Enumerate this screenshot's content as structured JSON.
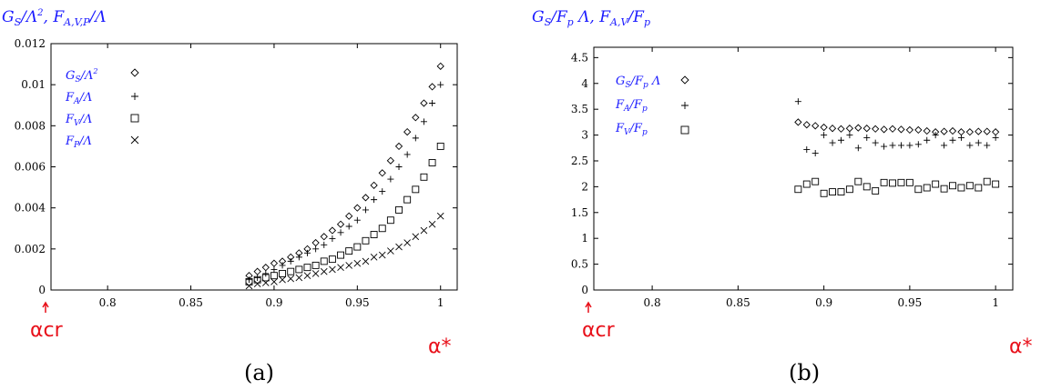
{
  "charts": [
    {
      "ylabel": "G_S/Λ², F_A,V,P/Λ",
      "caption": "(a)",
      "alpha_cr": "αcr",
      "alpha_star": "α*",
      "xticks": [
        "0.8",
        "0.85",
        "0.9",
        "0.95",
        "1"
      ],
      "yticks": [
        "0",
        "0.002",
        "0.004",
        "0.006",
        "0.008",
        "0.01",
        "0.012"
      ],
      "legend": [
        "G_S/Λ²",
        "F_A/Λ",
        "F_V/Λ",
        "F_P/Λ"
      ]
    },
    {
      "ylabel": "G_S/F_p Λ, F_A,V/F_p",
      "caption": "(b)",
      "alpha_cr": "αcr",
      "alpha_star": "α*",
      "xticks": [
        "0.8",
        "0.85",
        "0.9",
        "0.95",
        "1"
      ],
      "yticks": [
        "0",
        "0.5",
        "1",
        "1.5",
        "2",
        "2.5",
        "3",
        "3.5",
        "4",
        "4.5"
      ],
      "legend": [
        "G_S/F_p Λ",
        "F_A/F_p",
        "F_V/F_p"
      ]
    }
  ],
  "chart_data": [
    {
      "type": "scatter",
      "xlim": [
        0.766,
        1.01
      ],
      "ylim": [
        0,
        0.012
      ],
      "markers": [
        "diamond",
        "plus",
        "square",
        "cross"
      ],
      "series": [
        {
          "name": "G_S/Λ²",
          "x": [
            0.885,
            0.89,
            0.895,
            0.9,
            0.905,
            0.91,
            0.915,
            0.92,
            0.925,
            0.93,
            0.935,
            0.94,
            0.945,
            0.95,
            0.955,
            0.96,
            0.965,
            0.97,
            0.975,
            0.98,
            0.985,
            0.99,
            0.995,
            1.0
          ],
          "y": [
            0.0007,
            0.0009,
            0.0011,
            0.0013,
            0.0014,
            0.0016,
            0.0018,
            0.002,
            0.0023,
            0.0026,
            0.0029,
            0.0032,
            0.0036,
            0.004,
            0.0045,
            0.0051,
            0.0057,
            0.0063,
            0.007,
            0.0077,
            0.0084,
            0.0091,
            0.0099,
            0.0109
          ]
        },
        {
          "name": "F_A/Λ",
          "x": [
            0.885,
            0.89,
            0.895,
            0.9,
            0.905,
            0.91,
            0.915,
            0.92,
            0.925,
            0.93,
            0.935,
            0.94,
            0.945,
            0.95,
            0.955,
            0.96,
            0.965,
            0.97,
            0.975,
            0.98,
            0.985,
            0.99,
            0.995,
            1.0
          ],
          "y": [
            0.0005,
            0.0006,
            0.0008,
            0.001,
            0.0012,
            0.0014,
            0.0016,
            0.0018,
            0.002,
            0.0022,
            0.0025,
            0.0028,
            0.0031,
            0.0034,
            0.0039,
            0.0044,
            0.0048,
            0.0054,
            0.006,
            0.0066,
            0.0074,
            0.0082,
            0.0091,
            0.01
          ]
        },
        {
          "name": "F_V/Λ",
          "x": [
            0.885,
            0.89,
            0.895,
            0.9,
            0.905,
            0.91,
            0.915,
            0.92,
            0.925,
            0.93,
            0.935,
            0.94,
            0.945,
            0.95,
            0.955,
            0.96,
            0.965,
            0.97,
            0.975,
            0.98,
            0.985,
            0.99,
            0.995,
            1.0
          ],
          "y": [
            0.0004,
            0.0005,
            0.0006,
            0.0007,
            0.0008,
            0.0009,
            0.001,
            0.0011,
            0.0012,
            0.0014,
            0.0015,
            0.0017,
            0.0019,
            0.0021,
            0.0024,
            0.0027,
            0.003,
            0.0034,
            0.0039,
            0.0044,
            0.0049,
            0.0055,
            0.0062,
            0.007
          ]
        },
        {
          "name": "F_P/Λ",
          "x": [
            0.885,
            0.89,
            0.895,
            0.9,
            0.905,
            0.91,
            0.915,
            0.92,
            0.925,
            0.93,
            0.935,
            0.94,
            0.945,
            0.95,
            0.955,
            0.96,
            0.965,
            0.97,
            0.975,
            0.98,
            0.985,
            0.99,
            0.995,
            1.0
          ],
          "y": [
            0.0002,
            0.0003,
            0.00035,
            0.0004,
            0.0005,
            0.00055,
            0.0006,
            0.0007,
            0.0008,
            0.0009,
            0.001,
            0.0011,
            0.0012,
            0.0013,
            0.0014,
            0.0016,
            0.0017,
            0.0019,
            0.0021,
            0.0023,
            0.0026,
            0.0029,
            0.0032,
            0.0036
          ]
        }
      ]
    },
    {
      "type": "scatter",
      "xlim": [
        0.766,
        1.01
      ],
      "ylim": [
        0,
        4.7
      ],
      "markers": [
        "diamond",
        "plus",
        "square"
      ],
      "series": [
        {
          "name": "G_S/F_p Λ",
          "x": [
            0.885,
            0.89,
            0.895,
            0.9,
            0.905,
            0.91,
            0.915,
            0.92,
            0.925,
            0.93,
            0.935,
            0.94,
            0.945,
            0.95,
            0.955,
            0.96,
            0.965,
            0.97,
            0.975,
            0.98,
            0.985,
            0.99,
            0.995,
            1.0
          ],
          "y": [
            3.25,
            3.2,
            3.18,
            3.15,
            3.13,
            3.12,
            3.13,
            3.14,
            3.13,
            3.12,
            3.11,
            3.12,
            3.11,
            3.1,
            3.1,
            3.08,
            3.06,
            3.07,
            3.08,
            3.06,
            3.06,
            3.07,
            3.07,
            3.06
          ]
        },
        {
          "name": "F_A/F_p",
          "x": [
            0.885,
            0.89,
            0.895,
            0.9,
            0.905,
            0.91,
            0.915,
            0.92,
            0.925,
            0.93,
            0.935,
            0.94,
            0.945,
            0.95,
            0.955,
            0.96,
            0.965,
            0.97,
            0.975,
            0.98,
            0.985,
            0.99,
            0.995,
            1.0
          ],
          "y": [
            3.65,
            2.72,
            2.65,
            3.0,
            2.85,
            2.9,
            3.0,
            2.75,
            2.95,
            2.85,
            2.78,
            2.8,
            2.8,
            2.8,
            2.82,
            2.9,
            3.0,
            2.8,
            2.9,
            2.95,
            2.8,
            2.85,
            2.8,
            2.95
          ]
        },
        {
          "name": "F_V/F_p",
          "x": [
            0.885,
            0.89,
            0.895,
            0.9,
            0.905,
            0.91,
            0.915,
            0.92,
            0.925,
            0.93,
            0.935,
            0.94,
            0.945,
            0.95,
            0.955,
            0.96,
            0.965,
            0.97,
            0.975,
            0.98,
            0.985,
            0.99,
            0.995,
            1.0
          ],
          "y": [
            1.95,
            2.05,
            2.1,
            1.87,
            1.9,
            1.9,
            1.95,
            2.1,
            2.0,
            1.92,
            2.08,
            2.07,
            2.08,
            2.08,
            1.95,
            1.98,
            2.05,
            1.96,
            2.02,
            1.98,
            2.02,
            1.98,
            2.1,
            2.05
          ]
        }
      ]
    }
  ]
}
